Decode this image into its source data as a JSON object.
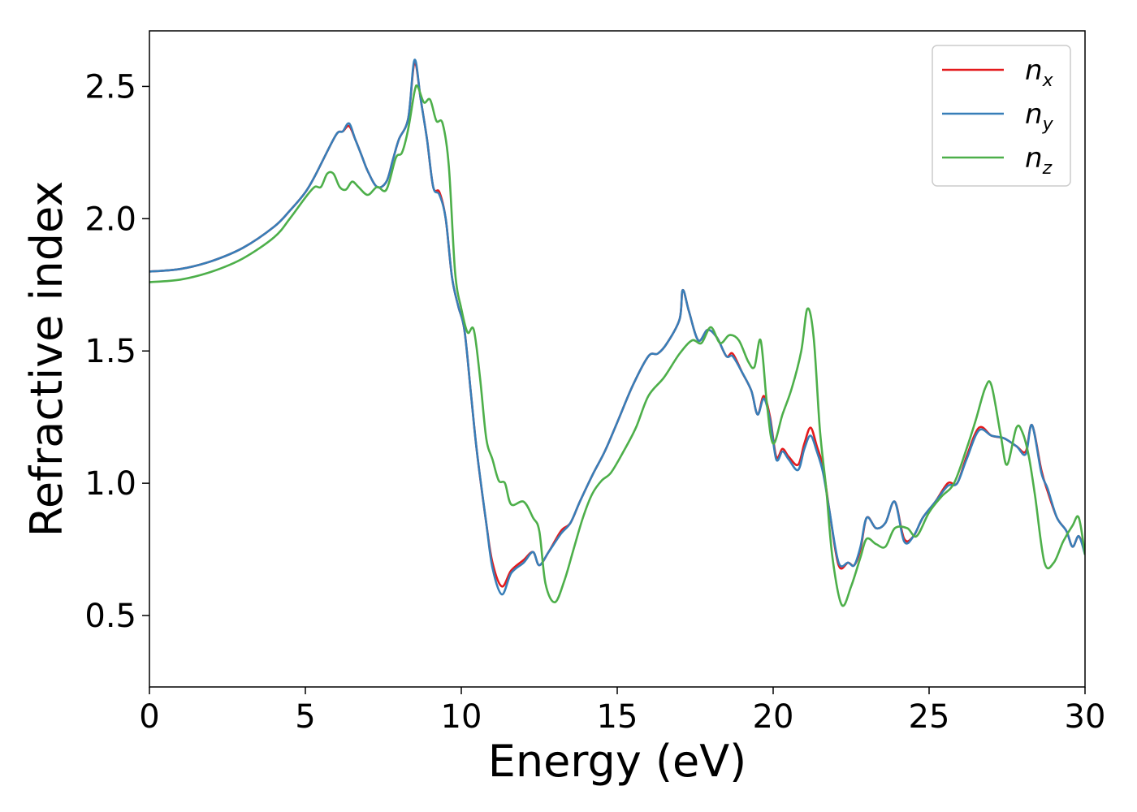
{
  "chart_data": {
    "type": "line",
    "title": "",
    "xlabel": "Energy (eV)",
    "ylabel": "Refractive index",
    "xlim": [
      0,
      30
    ],
    "ylim": [
      0.23,
      2.71
    ],
    "xticks": [
      0,
      5,
      10,
      15,
      20,
      25,
      30
    ],
    "yticks": [
      0.5,
      1.0,
      1.5,
      2.0,
      2.5
    ],
    "xtick_labels": [
      "0",
      "5",
      "10",
      "15",
      "20",
      "25",
      "30"
    ],
    "ytick_labels": [
      "0.5",
      "1.0",
      "1.5",
      "2.0",
      "2.5"
    ],
    "grid": false,
    "legend_position": "top-right",
    "series": [
      {
        "name": "n",
        "sub": "x",
        "color": "#e41a1c",
        "points": [
          [
            0,
            1.8
          ],
          [
            1,
            1.81
          ],
          [
            2,
            1.84
          ],
          [
            3,
            1.89
          ],
          [
            4,
            1.97
          ],
          [
            4.5,
            2.03
          ],
          [
            5,
            2.1
          ],
          [
            5.3,
            2.16
          ],
          [
            5.6,
            2.23
          ],
          [
            6,
            2.32
          ],
          [
            6.2,
            2.33
          ],
          [
            6.4,
            2.35
          ],
          [
            6.6,
            2.3
          ],
          [
            6.8,
            2.24
          ],
          [
            7,
            2.18
          ],
          [
            7.3,
            2.12
          ],
          [
            7.6,
            2.14
          ],
          [
            7.8,
            2.22
          ],
          [
            8,
            2.3
          ],
          [
            8.3,
            2.38
          ],
          [
            8.5,
            2.59
          ],
          [
            8.7,
            2.45
          ],
          [
            8.9,
            2.3
          ],
          [
            9.1,
            2.12
          ],
          [
            9.3,
            2.1
          ],
          [
            9.5,
            2.0
          ],
          [
            9.7,
            1.78
          ],
          [
            9.9,
            1.67
          ],
          [
            10.1,
            1.58
          ],
          [
            10.3,
            1.35
          ],
          [
            10.5,
            1.12
          ],
          [
            10.8,
            0.85
          ],
          [
            11,
            0.7
          ],
          [
            11.3,
            0.61
          ],
          [
            11.6,
            0.67
          ],
          [
            12,
            0.71
          ],
          [
            12.3,
            0.74
          ],
          [
            12.5,
            0.69
          ],
          [
            12.8,
            0.74
          ],
          [
            13.2,
            0.82
          ],
          [
            13.5,
            0.85
          ],
          [
            13.8,
            0.93
          ],
          [
            14.2,
            1.03
          ],
          [
            14.6,
            1.12
          ],
          [
            15,
            1.23
          ],
          [
            15.5,
            1.37
          ],
          [
            16,
            1.48
          ],
          [
            16.3,
            1.49
          ],
          [
            16.6,
            1.53
          ],
          [
            17,
            1.62
          ],
          [
            17.1,
            1.73
          ],
          [
            17.3,
            1.65
          ],
          [
            17.6,
            1.54
          ],
          [
            17.9,
            1.58
          ],
          [
            18.2,
            1.55
          ],
          [
            18.5,
            1.48
          ],
          [
            18.7,
            1.49
          ],
          [
            19,
            1.42
          ],
          [
            19.3,
            1.35
          ],
          [
            19.5,
            1.26
          ],
          [
            19.7,
            1.33
          ],
          [
            19.9,
            1.25
          ],
          [
            20.1,
            1.1
          ],
          [
            20.3,
            1.13
          ],
          [
            20.5,
            1.1
          ],
          [
            20.8,
            1.07
          ],
          [
            21,
            1.15
          ],
          [
            21.2,
            1.21
          ],
          [
            21.4,
            1.14
          ],
          [
            21.6,
            1.06
          ],
          [
            21.8,
            0.9
          ],
          [
            22.1,
            0.69
          ],
          [
            22.4,
            0.7
          ],
          [
            22.6,
            0.69
          ],
          [
            22.8,
            0.75
          ],
          [
            23,
            0.87
          ],
          [
            23.3,
            0.83
          ],
          [
            23.6,
            0.85
          ],
          [
            23.9,
            0.93
          ],
          [
            24.2,
            0.79
          ],
          [
            24.5,
            0.8
          ],
          [
            24.8,
            0.87
          ],
          [
            25.2,
            0.93
          ],
          [
            25.6,
            1.0
          ],
          [
            25.9,
            1.0
          ],
          [
            26.2,
            1.1
          ],
          [
            26.6,
            1.21
          ],
          [
            27,
            1.18
          ],
          [
            27.4,
            1.17
          ],
          [
            27.8,
            1.14
          ],
          [
            28.1,
            1.12
          ],
          [
            28.3,
            1.22
          ],
          [
            28.6,
            1.05
          ],
          [
            28.8,
            0.97
          ],
          [
            29.1,
            0.87
          ],
          [
            29.4,
            0.82
          ],
          [
            29.6,
            0.76
          ],
          [
            29.8,
            0.8
          ],
          [
            30,
            0.74
          ]
        ]
      },
      {
        "name": "n",
        "sub": "y",
        "color": "#377eb8",
        "points": [
          [
            0,
            1.8
          ],
          [
            1,
            1.81
          ],
          [
            2,
            1.84
          ],
          [
            3,
            1.89
          ],
          [
            4,
            1.97
          ],
          [
            4.5,
            2.03
          ],
          [
            5,
            2.1
          ],
          [
            5.3,
            2.16
          ],
          [
            5.6,
            2.23
          ],
          [
            6,
            2.32
          ],
          [
            6.2,
            2.33
          ],
          [
            6.4,
            2.36
          ],
          [
            6.6,
            2.3
          ],
          [
            6.8,
            2.24
          ],
          [
            7,
            2.18
          ],
          [
            7.3,
            2.12
          ],
          [
            7.6,
            2.14
          ],
          [
            7.8,
            2.22
          ],
          [
            8,
            2.3
          ],
          [
            8.3,
            2.38
          ],
          [
            8.5,
            2.6
          ],
          [
            8.7,
            2.45
          ],
          [
            8.9,
            2.3
          ],
          [
            9.1,
            2.12
          ],
          [
            9.3,
            2.09
          ],
          [
            9.5,
            2.0
          ],
          [
            9.7,
            1.78
          ],
          [
            9.9,
            1.67
          ],
          [
            10.1,
            1.58
          ],
          [
            10.3,
            1.35
          ],
          [
            10.5,
            1.12
          ],
          [
            10.8,
            0.85
          ],
          [
            11,
            0.68
          ],
          [
            11.3,
            0.58
          ],
          [
            11.6,
            0.66
          ],
          [
            12,
            0.7
          ],
          [
            12.3,
            0.74
          ],
          [
            12.5,
            0.69
          ],
          [
            12.8,
            0.74
          ],
          [
            13.2,
            0.81
          ],
          [
            13.5,
            0.85
          ],
          [
            13.8,
            0.93
          ],
          [
            14.2,
            1.03
          ],
          [
            14.6,
            1.12
          ],
          [
            15,
            1.23
          ],
          [
            15.5,
            1.37
          ],
          [
            16,
            1.48
          ],
          [
            16.3,
            1.49
          ],
          [
            16.6,
            1.53
          ],
          [
            17,
            1.62
          ],
          [
            17.1,
            1.73
          ],
          [
            17.3,
            1.65
          ],
          [
            17.6,
            1.54
          ],
          [
            17.9,
            1.58
          ],
          [
            18.2,
            1.55
          ],
          [
            18.5,
            1.48
          ],
          [
            18.7,
            1.48
          ],
          [
            19,
            1.42
          ],
          [
            19.3,
            1.35
          ],
          [
            19.5,
            1.26
          ],
          [
            19.7,
            1.32
          ],
          [
            19.9,
            1.24
          ],
          [
            20.1,
            1.09
          ],
          [
            20.3,
            1.12
          ],
          [
            20.5,
            1.09
          ],
          [
            20.8,
            1.05
          ],
          [
            21,
            1.13
          ],
          [
            21.2,
            1.18
          ],
          [
            21.4,
            1.12
          ],
          [
            21.6,
            1.04
          ],
          [
            21.8,
            0.9
          ],
          [
            22.1,
            0.7
          ],
          [
            22.4,
            0.7
          ],
          [
            22.6,
            0.69
          ],
          [
            22.8,
            0.76
          ],
          [
            23,
            0.87
          ],
          [
            23.3,
            0.83
          ],
          [
            23.6,
            0.85
          ],
          [
            23.9,
            0.93
          ],
          [
            24.2,
            0.78
          ],
          [
            24.5,
            0.8
          ],
          [
            24.8,
            0.87
          ],
          [
            25.2,
            0.93
          ],
          [
            25.6,
            0.99
          ],
          [
            25.9,
            1.0
          ],
          [
            26.2,
            1.09
          ],
          [
            26.6,
            1.2
          ],
          [
            27,
            1.18
          ],
          [
            27.4,
            1.17
          ],
          [
            27.8,
            1.14
          ],
          [
            28.1,
            1.11
          ],
          [
            28.3,
            1.22
          ],
          [
            28.6,
            1.04
          ],
          [
            28.8,
            0.98
          ],
          [
            29.1,
            0.87
          ],
          [
            29.4,
            0.82
          ],
          [
            29.6,
            0.76
          ],
          [
            29.8,
            0.8
          ],
          [
            30,
            0.73
          ]
        ]
      },
      {
        "name": "n",
        "sub": "z",
        "color": "#4daf4a",
        "points": [
          [
            0,
            1.76
          ],
          [
            1,
            1.77
          ],
          [
            2,
            1.8
          ],
          [
            3,
            1.85
          ],
          [
            4,
            1.93
          ],
          [
            4.5,
            2.0
          ],
          [
            5,
            2.08
          ],
          [
            5.3,
            2.12
          ],
          [
            5.5,
            2.12
          ],
          [
            5.7,
            2.17
          ],
          [
            5.9,
            2.17
          ],
          [
            6.1,
            2.12
          ],
          [
            6.3,
            2.11
          ],
          [
            6.5,
            2.14
          ],
          [
            6.7,
            2.12
          ],
          [
            7,
            2.09
          ],
          [
            7.3,
            2.12
          ],
          [
            7.6,
            2.11
          ],
          [
            7.9,
            2.23
          ],
          [
            8.1,
            2.25
          ],
          [
            8.3,
            2.34
          ],
          [
            8.5,
            2.48
          ],
          [
            8.6,
            2.5
          ],
          [
            8.8,
            2.44
          ],
          [
            9,
            2.45
          ],
          [
            9.2,
            2.37
          ],
          [
            9.4,
            2.36
          ],
          [
            9.6,
            2.2
          ],
          [
            9.8,
            1.8
          ],
          [
            10,
            1.66
          ],
          [
            10.2,
            1.57
          ],
          [
            10.4,
            1.58
          ],
          [
            10.6,
            1.4
          ],
          [
            10.8,
            1.17
          ],
          [
            11,
            1.09
          ],
          [
            11.2,
            1.01
          ],
          [
            11.4,
            1.0
          ],
          [
            11.6,
            0.92
          ],
          [
            12,
            0.93
          ],
          [
            12.3,
            0.87
          ],
          [
            12.5,
            0.82
          ],
          [
            12.7,
            0.62
          ],
          [
            13,
            0.55
          ],
          [
            13.3,
            0.63
          ],
          [
            13.6,
            0.75
          ],
          [
            13.9,
            0.87
          ],
          [
            14.2,
            0.96
          ],
          [
            14.5,
            1.01
          ],
          [
            14.8,
            1.04
          ],
          [
            15.2,
            1.12
          ],
          [
            15.6,
            1.21
          ],
          [
            16,
            1.33
          ],
          [
            16.5,
            1.4
          ],
          [
            17,
            1.49
          ],
          [
            17.4,
            1.54
          ],
          [
            17.7,
            1.53
          ],
          [
            18,
            1.59
          ],
          [
            18.3,
            1.53
          ],
          [
            18.6,
            1.56
          ],
          [
            18.9,
            1.54
          ],
          [
            19.2,
            1.46
          ],
          [
            19.4,
            1.44
          ],
          [
            19.6,
            1.54
          ],
          [
            19.8,
            1.3
          ],
          [
            20,
            1.15
          ],
          [
            20.3,
            1.26
          ],
          [
            20.6,
            1.36
          ],
          [
            20.9,
            1.5
          ],
          [
            21.1,
            1.66
          ],
          [
            21.3,
            1.55
          ],
          [
            21.5,
            1.2
          ],
          [
            21.7,
            0.98
          ],
          [
            21.9,
            0.72
          ],
          [
            22.2,
            0.54
          ],
          [
            22.5,
            0.61
          ],
          [
            22.8,
            0.72
          ],
          [
            23,
            0.79
          ],
          [
            23.3,
            0.77
          ],
          [
            23.6,
            0.76
          ],
          [
            23.9,
            0.83
          ],
          [
            24.3,
            0.83
          ],
          [
            24.6,
            0.8
          ],
          [
            25,
            0.89
          ],
          [
            25.4,
            0.95
          ],
          [
            25.8,
            1.0
          ],
          [
            26.2,
            1.13
          ],
          [
            26.5,
            1.24
          ],
          [
            26.8,
            1.36
          ],
          [
            27,
            1.37
          ],
          [
            27.3,
            1.18
          ],
          [
            27.5,
            1.07
          ],
          [
            27.8,
            1.21
          ],
          [
            28,
            1.19
          ],
          [
            28.2,
            1.1
          ],
          [
            28.4,
            0.95
          ],
          [
            28.7,
            0.7
          ],
          [
            29,
            0.7
          ],
          [
            29.3,
            0.78
          ],
          [
            29.6,
            0.84
          ],
          [
            29.8,
            0.87
          ],
          [
            30,
            0.73
          ]
        ]
      }
    ]
  }
}
